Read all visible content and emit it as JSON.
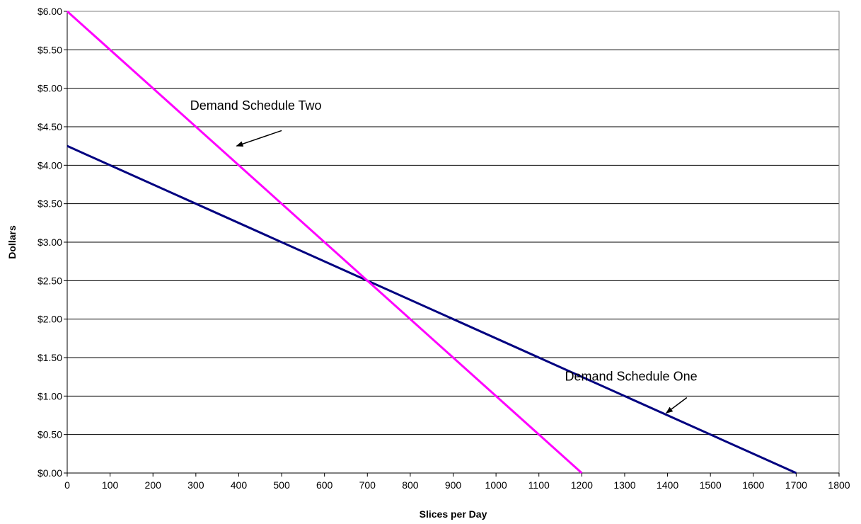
{
  "chart_data": {
    "type": "line",
    "title": "",
    "xlabel": "Slices per Day",
    "ylabel": "Dollars",
    "xlim": [
      0,
      1800
    ],
    "ylim": [
      0,
      6
    ],
    "x_ticks": [
      0,
      100,
      200,
      300,
      400,
      500,
      600,
      700,
      800,
      900,
      1000,
      1100,
      1200,
      1300,
      1400,
      1500,
      1600,
      1700,
      1800
    ],
    "y_ticks": [
      0,
      0.5,
      1,
      1.5,
      2,
      2.5,
      3,
      3.5,
      4,
      4.5,
      5,
      5.5,
      6
    ],
    "x_tick_labels": [
      "0",
      "100",
      "200",
      "300",
      "400",
      "500",
      "600",
      "700",
      "800",
      "900",
      "1000",
      "1100",
      "1200",
      "1300",
      "1400",
      "1500",
      "1600",
      "1700",
      "1800"
    ],
    "y_tick_labels": [
      "$0.00",
      "$0.50",
      "$1.00",
      "$1.50",
      "$2.00",
      "$2.50",
      "$3.00",
      "$3.50",
      "$4.00",
      "$4.50",
      "$5.00",
      "$5.50",
      "$6.00"
    ],
    "grid": "horizontal",
    "legend": "none",
    "series": [
      {
        "color": "#000080",
        "points": [
          [
            0,
            4.25
          ],
          [
            1700,
            0
          ]
        ]
      },
      {
        "color": "#FF00FF",
        "points": [
          [
            0,
            6.0
          ],
          [
            1200,
            0
          ]
        ]
      }
    ],
    "annotations": [
      {
        "text": "Demand Schedule Two",
        "label_x": 440,
        "label_y": 4.72,
        "arrow_from": [
          500,
          4.45
        ],
        "arrow_to": [
          395,
          4.25
        ]
      },
      {
        "text": "Demand Schedule One",
        "label_x": 1315,
        "label_y": 1.2,
        "arrow_from": [
          1445,
          0.98
        ],
        "arrow_to": [
          1397,
          0.78
        ]
      }
    ]
  }
}
